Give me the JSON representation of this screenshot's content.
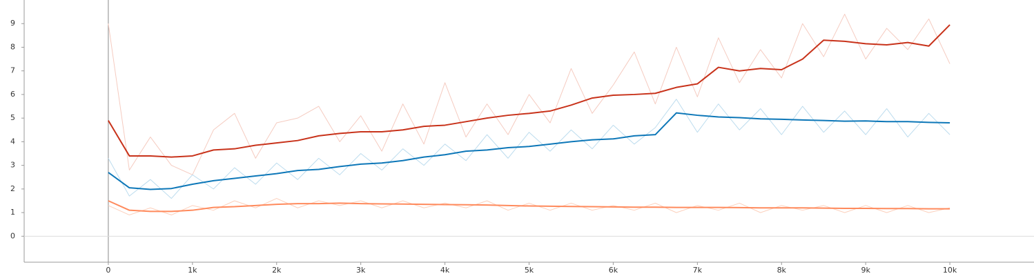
{
  "chart_data": {
    "type": "line",
    "x": [
      0,
      250,
      500,
      750,
      1000,
      1250,
      1500,
      1750,
      2000,
      2250,
      2500,
      2750,
      3000,
      3250,
      3500,
      3750,
      4000,
      4250,
      4500,
      4750,
      5000,
      5250,
      5500,
      5750,
      6000,
      6250,
      6500,
      6750,
      7000,
      7250,
      7500,
      7750,
      8000,
      8250,
      8500,
      8750,
      9000,
      9250,
      9500,
      9750,
      10000
    ],
    "xlim": [
      -1000,
      11000
    ],
    "xticks": [
      0,
      {
        "value": 1000,
        "label": "1k"
      },
      {
        "value": 2000,
        "label": "2k"
      },
      {
        "value": 3000,
        "label": "3k"
      },
      {
        "value": 4000,
        "label": "4k"
      },
      {
        "value": 5000,
        "label": "5k"
      },
      {
        "value": 6000,
        "label": "6k"
      },
      {
        "value": 7000,
        "label": "7k"
      },
      {
        "value": 8000,
        "label": "8k"
      },
      {
        "value": 9000,
        "label": "9k"
      },
      {
        "value": 10000,
        "label": "10k"
      }
    ],
    "ylim": [
      -1.1,
      10
    ],
    "yticks": [
      0,
      1,
      2,
      3,
      4,
      5,
      6,
      7,
      8,
      9
    ],
    "series": [
      {
        "color": "#f5cbc0",
        "values": [
          9.0,
          2.8,
          4.2,
          3.0,
          2.6,
          4.5,
          5.2,
          3.3,
          4.8,
          5.0,
          5.5,
          4.0,
          5.1,
          3.6,
          5.6,
          3.9,
          6.5,
          4.2,
          5.6,
          4.3,
          6.0,
          4.8,
          7.1,
          5.2,
          6.4,
          7.8,
          5.6,
          8.0,
          5.9,
          8.4,
          6.5,
          7.9,
          6.7,
          9.0,
          7.6,
          9.4,
          7.5,
          8.8,
          7.9,
          9.2,
          7.3
        ]
      },
      {
        "color": "#bcdcee",
        "values": [
          3.3,
          1.7,
          2.4,
          1.6,
          2.6,
          2.0,
          2.9,
          2.2,
          3.1,
          2.4,
          3.3,
          2.6,
          3.5,
          2.8,
          3.7,
          3.0,
          3.9,
          3.2,
          4.3,
          3.3,
          4.4,
          3.6,
          4.5,
          3.7,
          4.7,
          3.9,
          4.6,
          5.8,
          4.4,
          5.6,
          4.5,
          5.4,
          4.3,
          5.5,
          4.4,
          5.3,
          4.3,
          5.4,
          4.2,
          5.2,
          4.3
        ]
      },
      {
        "color": "#fcd0bc",
        "values": [
          1.3,
          0.9,
          1.2,
          0.9,
          1.3,
          1.1,
          1.5,
          1.2,
          1.6,
          1.2,
          1.5,
          1.3,
          1.5,
          1.2,
          1.5,
          1.2,
          1.4,
          1.2,
          1.5,
          1.1,
          1.4,
          1.1,
          1.4,
          1.1,
          1.3,
          1.1,
          1.4,
          1.0,
          1.3,
          1.1,
          1.4,
          1.0,
          1.3,
          1.1,
          1.3,
          1.0,
          1.3,
          1.0,
          1.3,
          1.0,
          1.2
        ]
      },
      {
        "color": "#c8321a",
        "values": [
          4.9,
          3.4,
          3.4,
          3.35,
          3.4,
          3.65,
          3.7,
          3.85,
          3.95,
          4.05,
          4.25,
          4.35,
          4.42,
          4.42,
          4.5,
          4.65,
          4.7,
          4.85,
          5.0,
          5.12,
          5.2,
          5.3,
          5.55,
          5.85,
          5.97,
          6.0,
          6.05,
          6.3,
          6.45,
          7.15,
          7.0,
          7.1,
          7.05,
          7.5,
          8.3,
          8.25,
          8.15,
          8.1,
          8.2,
          8.05,
          8.95
        ]
      },
      {
        "color": "#0d77b8",
        "values": [
          2.7,
          2.05,
          1.98,
          2.02,
          2.2,
          2.35,
          2.45,
          2.55,
          2.65,
          2.78,
          2.83,
          2.95,
          3.05,
          3.1,
          3.2,
          3.35,
          3.45,
          3.6,
          3.65,
          3.75,
          3.8,
          3.9,
          4.0,
          4.08,
          4.12,
          4.25,
          4.3,
          5.22,
          5.12,
          5.05,
          5.02,
          4.97,
          4.95,
          4.92,
          4.9,
          4.87,
          4.88,
          4.85,
          4.85,
          4.82,
          4.8
        ]
      },
      {
        "color": "#ff8a5c",
        "values": [
          1.5,
          1.1,
          1.05,
          1.05,
          1.1,
          1.22,
          1.25,
          1.3,
          1.35,
          1.38,
          1.38,
          1.4,
          1.38,
          1.37,
          1.36,
          1.35,
          1.34,
          1.33,
          1.32,
          1.3,
          1.28,
          1.27,
          1.26,
          1.25,
          1.24,
          1.23,
          1.23,
          1.22,
          1.22,
          1.22,
          1.21,
          1.2,
          1.2,
          1.2,
          1.19,
          1.18,
          1.18,
          1.17,
          1.17,
          1.16,
          1.16
        ]
      }
    ]
  }
}
